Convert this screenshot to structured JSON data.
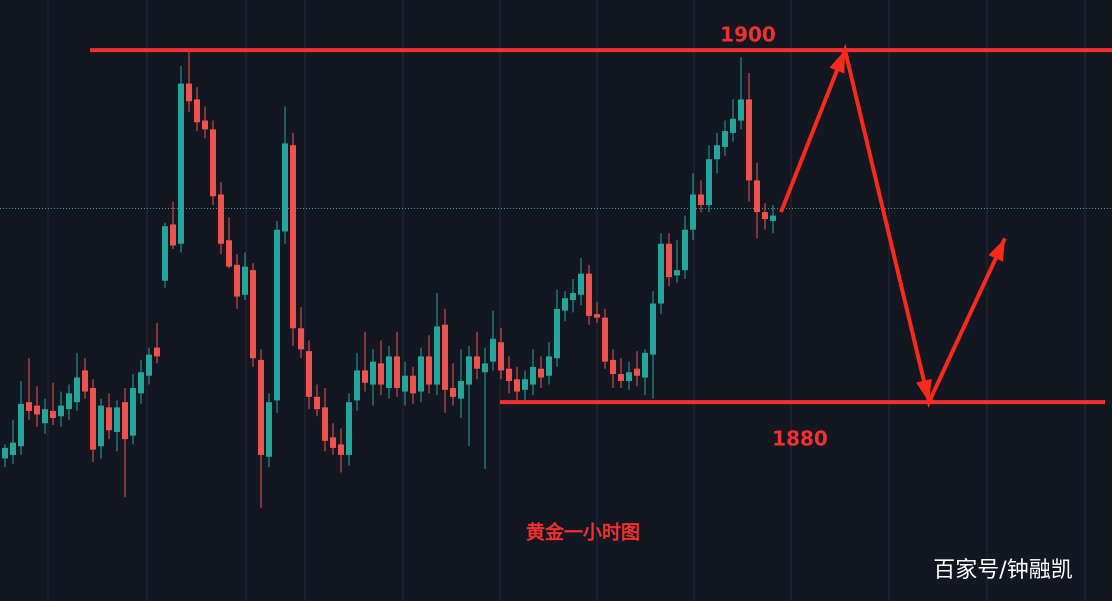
{
  "chart_data": {
    "type": "candlestick",
    "title": "黄金一小时图",
    "watermark": "百家号/钟融凯",
    "ylim": [
      1868.7,
      1902.85
    ],
    "up_color": "#26a69a",
    "down_color": "#ef5350",
    "open": [
      1876.8,
      1877.0,
      1877.5,
      1880.0,
      1879.8,
      1878.8,
      1879.5,
      1879.2,
      1879.6,
      1880.0,
      1881.8,
      1880.8,
      1877.5,
      1879.7,
      1878.3,
      1880.0,
      1878.1,
      1880.5,
      1881.5,
      1883.1,
      1886.9,
      1890.1,
      1889.0,
      1898.1,
      1897.2,
      1896.0,
      1895.5,
      1891.8,
      1889.2,
      1887.8,
      1886.1,
      1887.5,
      1882.4,
      1876.9,
      1880.1,
      1889.7,
      1894.6,
      1884.2,
      1882.9,
      1880.3,
      1879.7,
      1878.0,
      1877.6,
      1877.0,
      1880.1,
      1881.8,
      1881.0,
      1882.2,
      1880.8,
      1882.6,
      1880.6,
      1881.5,
      1880.6,
      1882.6,
      1881.0,
      1884.4,
      1880.8,
      1880.2,
      1881.0,
      1882.6,
      1881.7,
      1882.3,
      1883.4,
      1881.9,
      1881.3,
      1880.7,
      1881.0,
      1881.9,
      1881.5,
      1882.5,
      1885.2,
      1885.8,
      1886.1,
      1887.3,
      1885.0,
      1884.8,
      1882.4,
      1881.6,
      1881.2,
      1881.9,
      1881.4,
      1882.7,
      1885.6,
      1889.0,
      1887.2,
      1887.5,
      1889.8,
      1891.8,
      1891.2,
      1893.8,
      1894.5,
      1895.3,
      1896.0,
      1897.2,
      1892.6,
      1890.8,
      1890.3
    ],
    "high": [
      1877.6,
      1879.0,
      1881.2,
      1882.5,
      1880.9,
      1880.2,
      1881.1,
      1880.6,
      1881.0,
      1882.8,
      1882.5,
      1881.3,
      1880.2,
      1880.5,
      1880.1,
      1880.8,
      1881.6,
      1882.4,
      1883.1,
      1884.5,
      1890.2,
      1891.4,
      1899.1,
      1900.0,
      1897.9,
      1896.8,
      1896.0,
      1892.5,
      1890.5,
      1888.4,
      1888.5,
      1887.9,
      1883.0,
      1880.5,
      1890.3,
      1896.8,
      1895.3,
      1885.4,
      1883.5,
      1881.0,
      1880.8,
      1878.8,
      1878.5,
      1880.5,
      1882.8,
      1884.0,
      1883.0,
      1883.5,
      1883.2,
      1884.0,
      1882.3,
      1882.0,
      1883.1,
      1883.8,
      1886.2,
      1885.3,
      1882.2,
      1883.0,
      1883.2,
      1884.0,
      1883.1,
      1885.2,
      1884.2,
      1882.6,
      1882.0,
      1881.8,
      1883.0,
      1882.6,
      1883.4,
      1886.4,
      1886.3,
      1887.0,
      1888.2,
      1887.8,
      1885.7,
      1885.3,
      1883.0,
      1882.5,
      1882.3,
      1882.9,
      1883.0,
      1886.3,
      1889.6,
      1889.6,
      1889.2,
      1890.6,
      1893.0,
      1892.6,
      1894.6,
      1895.3,
      1896.0,
      1897.2,
      1899.6,
      1898.7,
      1893.6,
      1891.3,
      1891.2
    ],
    "low": [
      1876.3,
      1876.5,
      1877.0,
      1879.0,
      1878.6,
      1878.2,
      1878.7,
      1878.6,
      1879.0,
      1879.5,
      1880.2,
      1876.6,
      1876.8,
      1877.9,
      1877.2,
      1874.6,
      1877.6,
      1879.9,
      1881.0,
      1882.2,
      1886.5,
      1888.7,
      1888.5,
      1896.5,
      1895.4,
      1895.0,
      1891.2,
      1888.4,
      1887.6,
      1885.3,
      1885.8,
      1882.0,
      1874.0,
      1876.3,
      1879.4,
      1889.0,
      1883.2,
      1882.5,
      1879.6,
      1879.2,
      1877.2,
      1877.0,
      1876.0,
      1876.4,
      1879.5,
      1880.6,
      1879.8,
      1880.4,
      1880.2,
      1880.3,
      1879.8,
      1879.9,
      1880.0,
      1880.5,
      1880.4,
      1879.4,
      1879.8,
      1879.1,
      1877.5,
      1881.3,
      1876.2,
      1881.8,
      1881.3,
      1880.5,
      1880.1,
      1880.1,
      1880.4,
      1880.8,
      1881.0,
      1882.0,
      1884.6,
      1885.1,
      1885.5,
      1884.4,
      1884.5,
      1881.9,
      1880.8,
      1880.8,
      1880.7,
      1880.9,
      1880.4,
      1880.2,
      1885.0,
      1886.6,
      1886.8,
      1887.0,
      1889.2,
      1890.8,
      1890.8,
      1893.0,
      1894.0,
      1894.8,
      1895.5,
      1891.4,
      1889.3,
      1889.8,
      1889.6
    ],
    "close": [
      1877.4,
      1877.7,
      1879.9,
      1879.5,
      1879.3,
      1879.6,
      1879.1,
      1879.8,
      1880.5,
      1881.4,
      1880.6,
      1877.3,
      1879.8,
      1878.4,
      1879.7,
      1877.9,
      1880.8,
      1881.7,
      1882.7,
      1882.6,
      1890.0,
      1888.9,
      1898.1,
      1897.1,
      1895.9,
      1895.5,
      1891.7,
      1889.0,
      1887.7,
      1886.0,
      1887.7,
      1882.5,
      1877.0,
      1880.0,
      1889.8,
      1894.7,
      1884.2,
      1883.0,
      1880.3,
      1879.6,
      1877.8,
      1877.4,
      1877.0,
      1880.0,
      1881.8,
      1881.1,
      1882.3,
      1881.0,
      1882.6,
      1880.8,
      1881.5,
      1880.5,
      1882.6,
      1881.0,
      1884.3,
      1880.7,
      1880.3,
      1881.2,
      1882.6,
      1881.9,
      1882.2,
      1883.6,
      1881.8,
      1881.2,
      1880.6,
      1881.3,
      1882.0,
      1881.4,
      1882.6,
      1885.3,
      1885.9,
      1886.2,
      1887.3,
      1884.9,
      1884.8,
      1882.3,
      1881.6,
      1881.2,
      1881.7,
      1881.5,
      1882.8,
      1885.6,
      1889.0,
      1887.1,
      1887.5,
      1889.8,
      1891.8,
      1891.2,
      1893.8,
      1894.6,
      1895.4,
      1896.1,
      1897.2,
      1892.6,
      1890.8,
      1890.4,
      1890.6
    ],
    "levels": [
      1900,
      1880
    ],
    "level_color": "#f23030",
    "current_price": 1891,
    "projection": {
      "x": [
        97,
        105,
        115.5,
        125
      ],
      "values": [
        1890.8,
        1900,
        1880,
        1889.3
      ],
      "color": "#f82a1c"
    }
  }
}
